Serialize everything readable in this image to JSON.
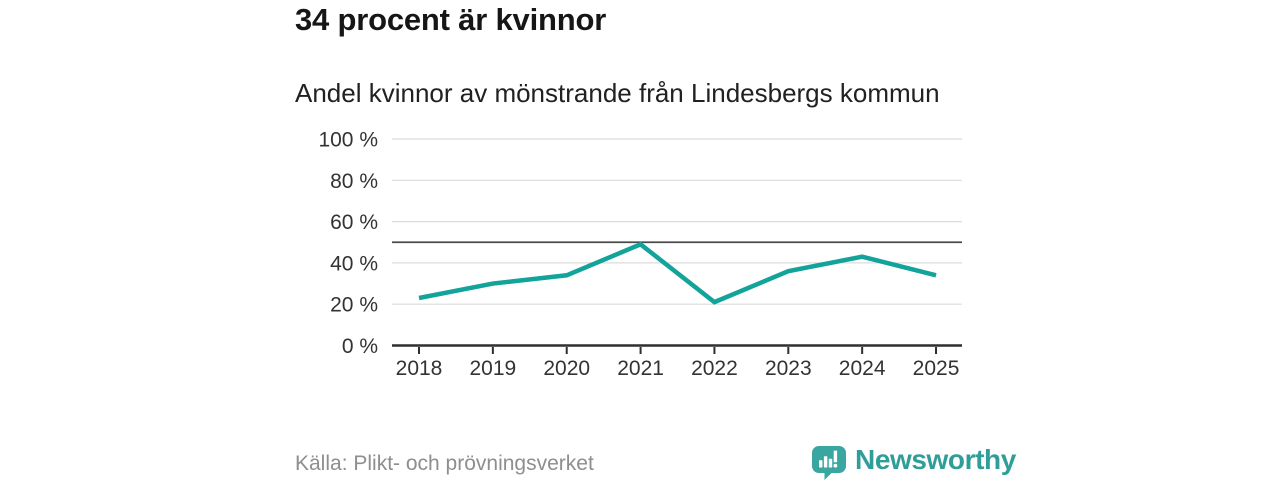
{
  "page": {
    "title": "34 procent är kvinnor",
    "subtitle": "Andel kvinnor av mönstrande från Lindesbergs kommun",
    "source": "Källa: Plikt- och prövningsverket",
    "brand": "Newsworthy"
  },
  "colors": {
    "line": "#12a39a",
    "grid": "#dcdcdc",
    "reference_line": "#4b4b4b",
    "axis": "#2f2f2f",
    "tick_text": "#333333",
    "title_text": "#161616",
    "source_text": "#8e8e8e",
    "brand_teal": "#2f9e99",
    "logo_fill": "#3aa6a0",
    "background": "#ffffff"
  },
  "chart_data": {
    "type": "line",
    "title": "34 procent är kvinnor",
    "subtitle": "Andel kvinnor av mönstrande från Lindesbergs kommun",
    "x": [
      2018,
      2019,
      2020,
      2021,
      2022,
      2023,
      2024,
      2025
    ],
    "series": [
      {
        "name": "Andel kvinnor av mönstrande",
        "values": [
          23,
          30,
          34,
          49,
          21,
          36,
          43,
          34
        ]
      }
    ],
    "unit": "%",
    "ylim": [
      0,
      100
    ],
    "yticks": [
      0,
      20,
      40,
      60,
      80,
      100
    ],
    "ytick_suffix": " %",
    "reference_line": 50,
    "grid": true,
    "legend_position": "none",
    "xlabel": "",
    "ylabel": "",
    "source": "Källa: Plikt- och prövningsverket"
  }
}
